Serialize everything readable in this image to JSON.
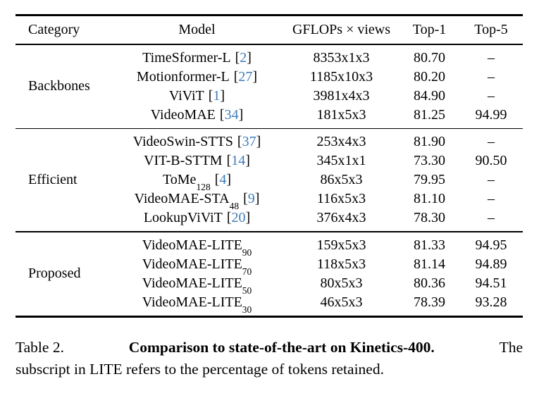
{
  "table": {
    "ref_open": "[",
    "ref_close": "]",
    "header": {
      "category": "Category",
      "model": "Model",
      "gflops": "GFLOPs × views",
      "top1": "Top-1",
      "top5": "Top-5"
    },
    "sections": [
      {
        "category": "Backbones",
        "rows": [
          {
            "model": "TimeSformer-L",
            "ref": "2",
            "gflops": "8353x1x3",
            "top1": "80.70",
            "top5": "–"
          },
          {
            "model": "Motionformer-L",
            "ref": "27",
            "gflops": "1185x10x3",
            "top1": "80.20",
            "top5": "–"
          },
          {
            "model": "ViViT",
            "ref": "1",
            "gflops": "3981x4x3",
            "top1": "84.90",
            "top5": "–"
          },
          {
            "model": "VideoMAE",
            "ref": "34",
            "gflops": "181x5x3",
            "top1": "81.25",
            "top5": "94.99"
          }
        ]
      },
      {
        "category": "Efficient",
        "rows": [
          {
            "model": "VideoSwin-STTS",
            "ref": "37",
            "gflops": "253x4x3",
            "top1": "81.90",
            "top5": "–"
          },
          {
            "model": "VIT-B-STTM",
            "ref": "14",
            "gflops": "345x1x1",
            "top1": "73.30",
            "top5": "90.50"
          },
          {
            "model": "ToMe",
            "sub": "128",
            "ref": "4",
            "gflops": "86x5x3",
            "top1": "79.95",
            "top5": "–"
          },
          {
            "model": "VideoMAE-STA",
            "sub": "48",
            "ref": "9",
            "gflops": "116x5x3",
            "top1": "81.10",
            "top5": "–"
          },
          {
            "model": "LookupViViT",
            "ref": "20",
            "gflops": "376x4x3",
            "top1": "78.30",
            "top5": "–"
          }
        ]
      },
      {
        "category": "Proposed",
        "rows": [
          {
            "model": "VideoMAE-LITE",
            "sub": "90",
            "gflops": "159x5x3",
            "top1": "81.33",
            "top5": "94.95"
          },
          {
            "model": "VideoMAE-LITE",
            "sub": "70",
            "gflops": "118x5x3",
            "top1": "81.14",
            "top5": "94.89"
          },
          {
            "model": "VideoMAE-LITE",
            "sub": "50",
            "gflops": "80x5x3",
            "top1": "80.36",
            "top5": "94.51"
          },
          {
            "model": "VideoMAE-LITE",
            "sub": "30",
            "gflops": "46x5x3",
            "top1": "78.39",
            "top5": "93.28"
          }
        ]
      }
    ]
  },
  "caption": {
    "label": "Table 2.",
    "bold": "Comparison to state-of-the-art on Kinetics-400.",
    "line1_end": "The",
    "line2": "subscript in LITE refers to the percentage of tokens retained."
  },
  "colors": {
    "citation": "#3E7CB8"
  }
}
